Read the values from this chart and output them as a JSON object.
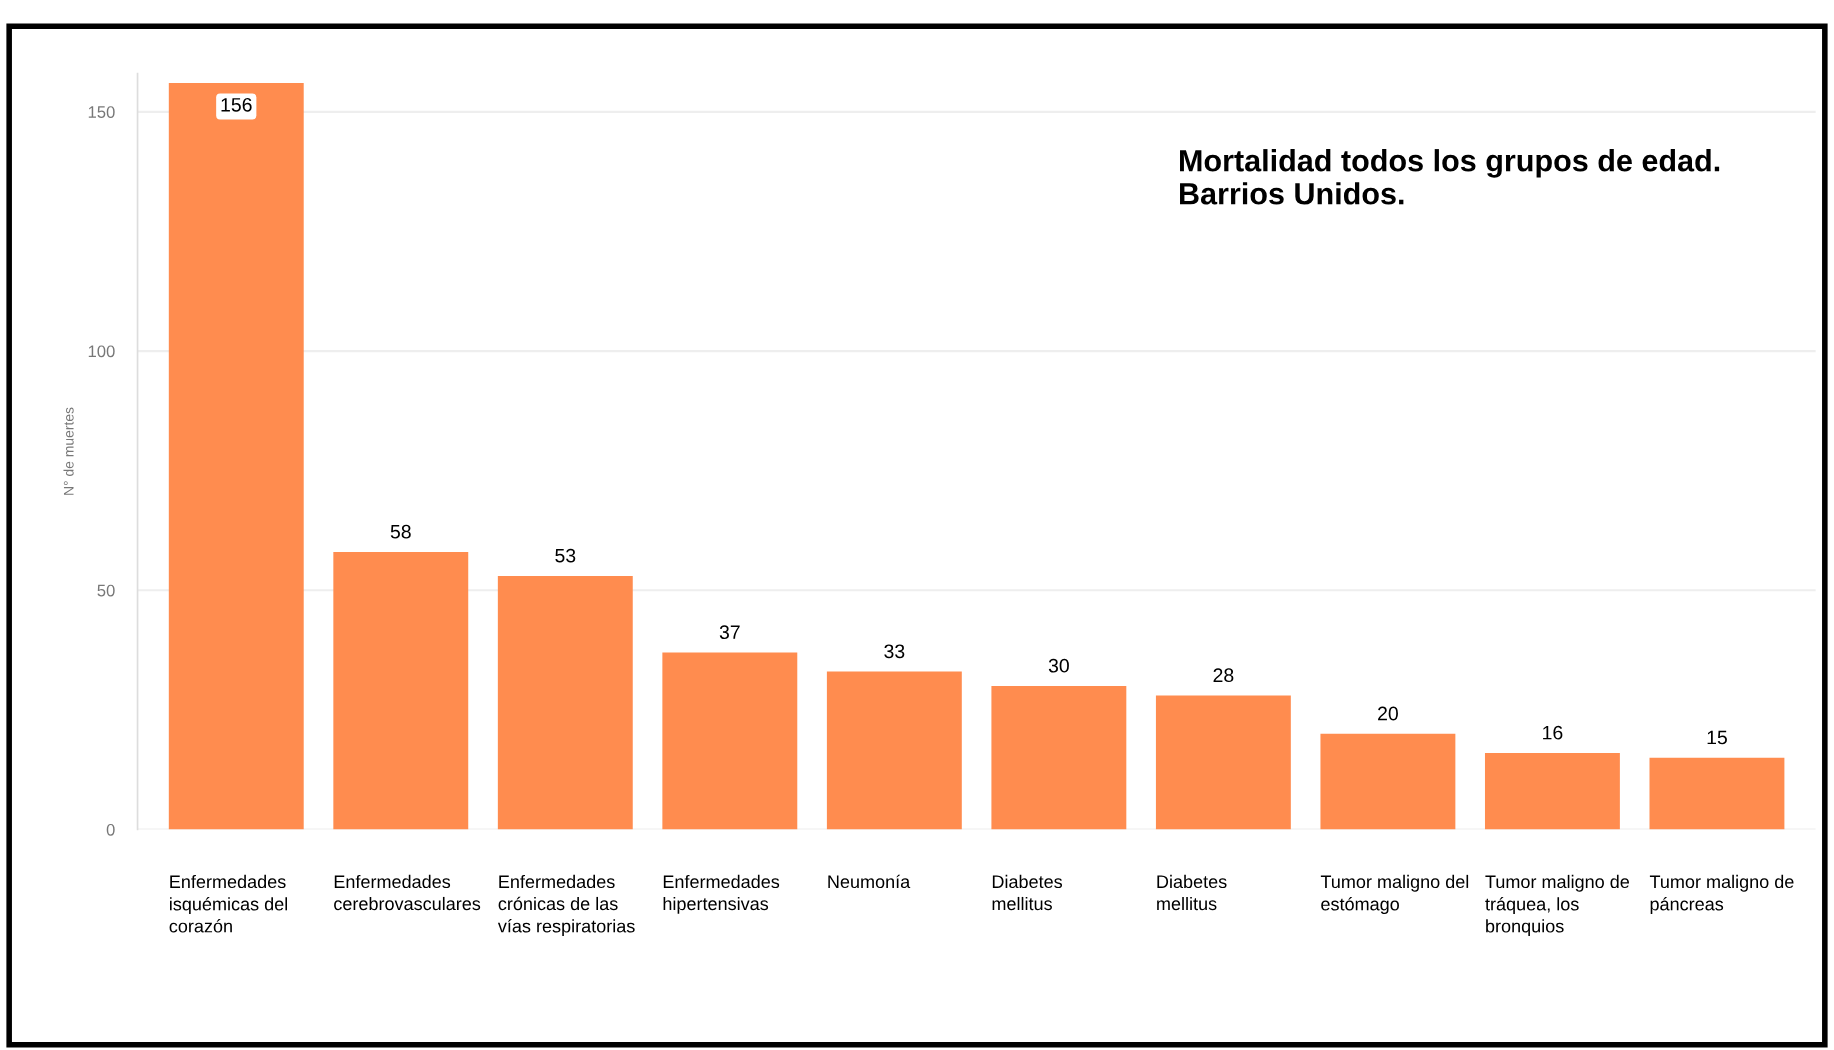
{
  "chart_data": {
    "type": "bar",
    "title": "Mortalidad todos los grupos de edad.\nBarrios Unidos.",
    "ylabel": "N° de muertes",
    "categories": [
      "Enfermedades\nisquémicas del\ncorazón",
      "Enfermedades\ncerebrovasculares",
      "Enfermedades\ncrónicas de las\nvías respiratorias",
      "Enfermedades\nhipertensivas",
      "Neumonía",
      "Diabetes\nmellitus",
      "Diabetes\nmellitus",
      "Tumor maligno del\nestómago",
      "Tumor maligno de\ntráquea, los\nbronquios",
      "Tumor maligno de\npáncreas"
    ],
    "values": [
      156,
      58,
      53,
      37,
      33,
      30,
      28,
      20,
      16,
      15
    ],
    "color": "#ff8c4f",
    "ylim": [
      0,
      158
    ],
    "yticks": [
      0,
      50,
      100,
      150
    ],
    "grid": "y",
    "data_labels": true
  }
}
